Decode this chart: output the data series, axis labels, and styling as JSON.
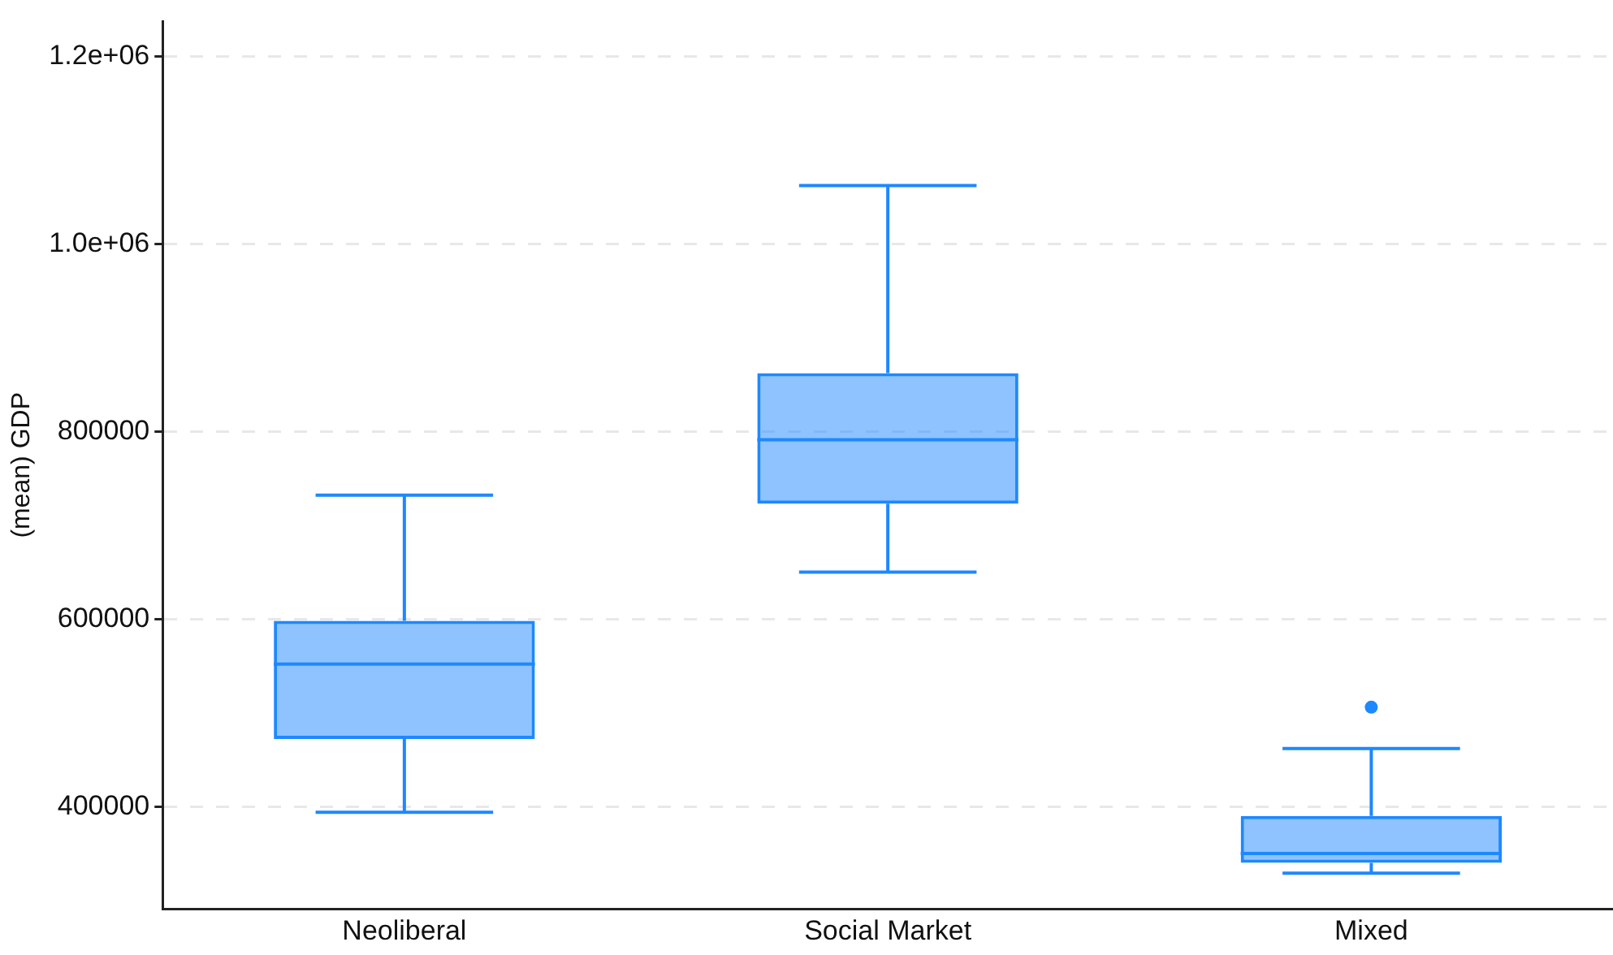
{
  "chart_data": {
    "type": "box",
    "ylabel": "(mean) GDP",
    "categories": [
      "Neoliberal",
      "Social Market",
      "Mixed"
    ],
    "series": [
      {
        "color": "#1e88ff",
        "boxes": [
          {
            "low": 394000,
            "q1": 472000,
            "median": 552000,
            "q3": 598000,
            "high": 732000
          },
          {
            "low": 650000,
            "q1": 723000,
            "median": 791000,
            "q3": 862000,
            "high": 1062000
          },
          {
            "low": 329000,
            "q1": 340000,
            "median": 350000,
            "q3": 390000,
            "high": 462000,
            "outliers": [
              506000
            ]
          }
        ]
      }
    ],
    "ylim": [
      291000,
      1237000
    ],
    "yticks": [
      {
        "value": 400000,
        "label": "400000"
      },
      {
        "value": 600000,
        "label": "600000"
      },
      {
        "value": 800000,
        "label": "800000"
      },
      {
        "value": 1000000,
        "label": "1.0e+06"
      },
      {
        "value": 1200000,
        "label": "1.2e+06"
      }
    ],
    "grid": "y",
    "legend": false
  }
}
